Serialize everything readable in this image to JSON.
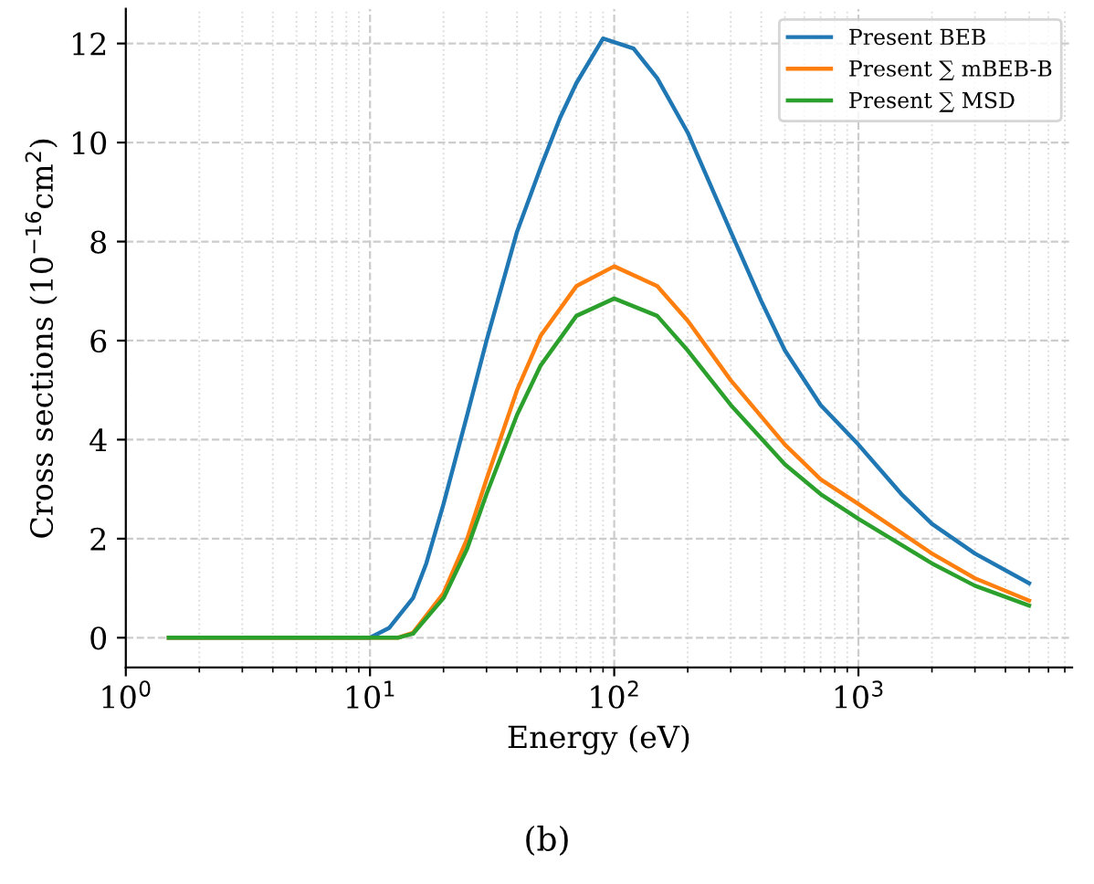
{
  "chart_data": {
    "type": "line",
    "xlabel": "Energy (eV)",
    "ylabel": "Cross sections (10$^{−16}$cm$^{2}$)",
    "log": "x",
    "xlim": [
      1,
      7500
    ],
    "xticks": [
      {
        "value": 1,
        "label": "10$^{0}$"
      },
      {
        "value": 10,
        "label": "10$^{1}$"
      },
      {
        "value": 100,
        "label": "10$^{2}$"
      },
      {
        "value": 1000,
        "label": "10$^{3}$"
      }
    ],
    "ylim": [
      -0.6,
      12.7
    ],
    "yticks": [
      0,
      2,
      4,
      6,
      8,
      10,
      12
    ],
    "grid": true,
    "legend": "top right",
    "line_style": "solid",
    "marker": "none",
    "annotations": [
      "(b)"
    ],
    "series": [
      {
        "name": "Present BEB",
        "color": "#1f77b4",
        "x": [
          1.5,
          10,
          12,
          15,
          17,
          20,
          25,
          30,
          40,
          50,
          60,
          70,
          90,
          120,
          150,
          200,
          300,
          400,
          500,
          700,
          1000,
          1500,
          2000,
          3000,
          5000
        ],
        "values": [
          0,
          0,
          0.2,
          0.8,
          1.5,
          2.7,
          4.5,
          6.0,
          8.2,
          9.5,
          10.5,
          11.2,
          12.1,
          11.9,
          11.3,
          10.2,
          8.2,
          6.8,
          5.8,
          4.7,
          3.9,
          2.9,
          2.3,
          1.7,
          1.1
        ]
      },
      {
        "name": "Present ∑ mBEB-B",
        "color": "#ff7f0e",
        "x": [
          1.5,
          13,
          15,
          20,
          25,
          30,
          40,
          50,
          70,
          100,
          150,
          200,
          300,
          500,
          700,
          1000,
          2000,
          3000,
          5000
        ],
        "values": [
          0,
          0,
          0.1,
          0.9,
          2.0,
          3.2,
          5.0,
          6.1,
          7.1,
          7.5,
          7.1,
          6.4,
          5.2,
          3.9,
          3.2,
          2.7,
          1.7,
          1.2,
          0.75
        ]
      },
      {
        "name": "Present ∑ MSD",
        "color": "#2ca02c",
        "x": [
          1.5,
          13,
          15,
          20,
          25,
          30,
          40,
          50,
          70,
          100,
          150,
          200,
          300,
          500,
          700,
          1000,
          2000,
          3000,
          5000
        ],
        "values": [
          0,
          0,
          0.08,
          0.8,
          1.8,
          2.9,
          4.5,
          5.5,
          6.5,
          6.85,
          6.5,
          5.8,
          4.7,
          3.5,
          2.9,
          2.4,
          1.5,
          1.05,
          0.65
        ]
      }
    ]
  }
}
